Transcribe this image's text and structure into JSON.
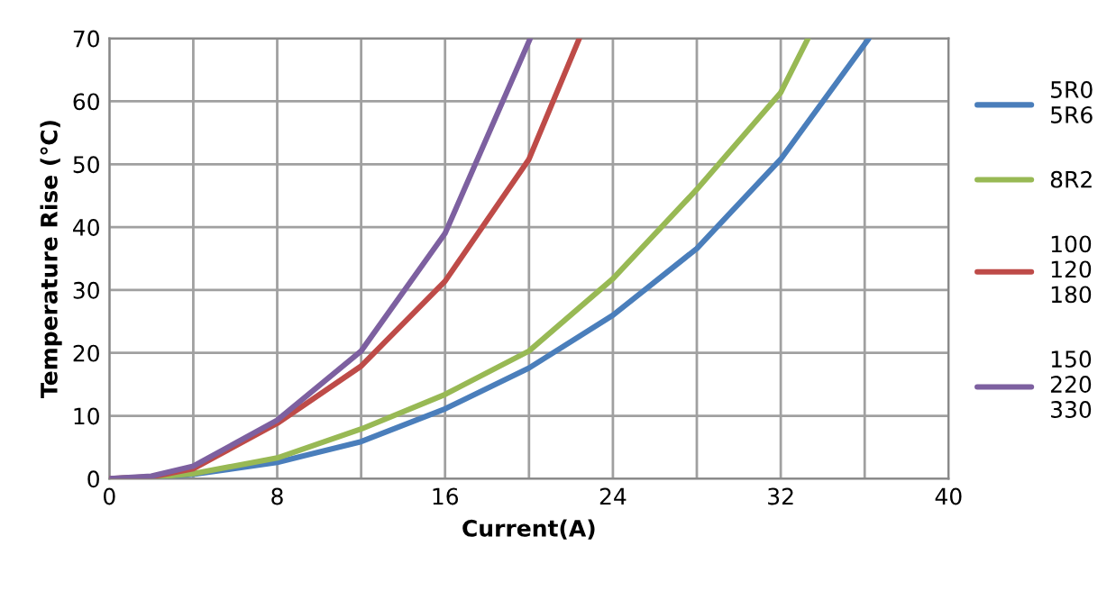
{
  "chart_data": {
    "type": "line",
    "xlabel": "Current(A)",
    "ylabel": "Temperature Rise (℃)",
    "xlim": [
      0,
      40
    ],
    "ylim": [
      0,
      70
    ],
    "xticks": [
      0,
      {
        "value": 4,
        "label": null
      },
      8,
      {
        "value": 12,
        "label": null
      },
      16,
      {
        "value": 20,
        "label": null
      },
      24,
      {
        "value": 28,
        "label": null
      },
      32,
      {
        "value": 36,
        "label": null
      },
      40
    ],
    "yticks": [
      0,
      10,
      20,
      30,
      40,
      50,
      60,
      70
    ],
    "grid": true,
    "legend": "right",
    "marker": "none",
    "line_style": "solid",
    "series": [
      {
        "name": "5R0\n5R6",
        "color": "#4a7ebb",
        "x": [
          0,
          2,
          4,
          8,
          12,
          16,
          20,
          24,
          28,
          32,
          36.2
        ],
        "values": [
          0,
          0.2,
          0.7,
          2.6,
          5.9,
          11.1,
          17.6,
          26,
          36.6,
          50.8,
          70
        ]
      },
      {
        "name": "8R2",
        "color": "#98b954",
        "x": [
          0,
          2,
          4,
          8,
          12,
          16,
          20,
          24,
          28,
          32,
          33.3
        ],
        "values": [
          0,
          0.2,
          0.8,
          3.3,
          7.9,
          13.4,
          20.3,
          31.8,
          46,
          61.4,
          70
        ]
      },
      {
        "name": "100\n120\n180",
        "color": "#be4b48",
        "x": [
          0,
          2,
          4,
          8,
          12,
          16,
          20,
          22.4
        ],
        "values": [
          0,
          0.3,
          1.6,
          8.8,
          17.9,
          31.4,
          50.8,
          70
        ]
      },
      {
        "name": "150\n220\n330",
        "color": "#7d60a0",
        "x": [
          0,
          2,
          4,
          8,
          12,
          16,
          20.06
        ],
        "values": [
          0,
          0.4,
          2,
          9.3,
          20.3,
          39,
          70
        ]
      }
    ]
  }
}
